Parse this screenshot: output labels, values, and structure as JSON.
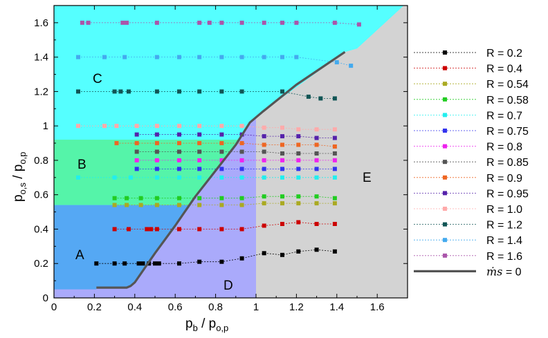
{
  "chart_data": {
    "type": "scatter",
    "xlabel": "p_b / p_o,p",
    "xlabel_main": "p",
    "xlabel_sub": "b",
    "xlabel_mid": " / p",
    "xlabel_sub2": "o,p",
    "ylabel": "p_o,s / p_o,p",
    "ylabel_main": "p",
    "ylabel_sub": "o,s",
    "ylabel_mid": " / p",
    "ylabel_sub2": "o,p",
    "xlim": [
      0,
      1.75
    ],
    "ylim": [
      0,
      1.7
    ],
    "xticks": [
      "0",
      "0.2",
      "0.4",
      "0.6",
      "0.8",
      "1",
      "1.2",
      "1.4",
      "1.6"
    ],
    "yticks": [
      "0",
      "0.2",
      "0.4",
      "0.6",
      "0.8",
      "1",
      "1.2",
      "1.4",
      "1.6"
    ],
    "legend_position": "right",
    "region_labels": [
      "A",
      "B",
      "C",
      "D",
      "E"
    ],
    "region_colors": {
      "A": "#55a8f4",
      "B": "#55f4a9",
      "C": "#55ffff",
      "D": "#aaaafb",
      "E": "#d3d3d3"
    },
    "mass_flow_line": {
      "label_symbol": "ṁs",
      "label_value": " = 0",
      "color": "#555555",
      "x": [
        0.21,
        0.36,
        0.38,
        0.4,
        0.5,
        0.6,
        0.7,
        0.8,
        0.9,
        0.97,
        1.03,
        1.2,
        1.44
      ],
      "y": [
        0.06,
        0.06,
        0.07,
        0.09,
        0.26,
        0.42,
        0.59,
        0.74,
        0.89,
        1.02,
        1.08,
        1.24,
        1.43
      ]
    },
    "series": [
      {
        "name": "R = 0.2",
        "color": "#000000",
        "x": [
          0.21,
          0.3,
          0.35,
          0.42,
          0.44,
          0.47,
          0.5,
          0.52,
          0.62,
          0.72,
          0.83,
          0.93,
          1.04,
          1.13,
          1.21,
          1.3,
          1.39
        ],
        "y": [
          0.2,
          0.2,
          0.2,
          0.2,
          0.2,
          0.2,
          0.2,
          0.2,
          0.2,
          0.21,
          0.21,
          0.23,
          0.26,
          0.25,
          0.27,
          0.28,
          0.27
        ]
      },
      {
        "name": "R = 0.4",
        "color": "#cc0000",
        "x": [
          0.3,
          0.37,
          0.46,
          0.48,
          0.51,
          0.62,
          0.72,
          0.83,
          0.93,
          1.04,
          1.13,
          1.21,
          1.3,
          1.39
        ],
        "y": [
          0.4,
          0.4,
          0.4,
          0.4,
          0.4,
          0.4,
          0.4,
          0.4,
          0.4,
          0.42,
          0.43,
          0.44,
          0.43,
          0.43
        ]
      },
      {
        "name": "R = 0.54",
        "color": "#aaaa22",
        "x": [
          0.3,
          0.36,
          0.43,
          0.51,
          0.62,
          0.72,
          0.83,
          0.93,
          1.04,
          1.13,
          1.21,
          1.3,
          1.39
        ],
        "y": [
          0.54,
          0.54,
          0.54,
          0.54,
          0.54,
          0.54,
          0.54,
          0.54,
          0.55,
          0.55,
          0.55,
          0.55,
          0.55
        ]
      },
      {
        "name": "R = 0.58",
        "color": "#22cc22",
        "x": [
          0.3,
          0.36,
          0.43,
          0.51,
          0.62,
          0.72,
          0.83,
          0.93,
          1.04,
          1.13,
          1.21,
          1.3,
          1.39
        ],
        "y": [
          0.58,
          0.58,
          0.58,
          0.58,
          0.58,
          0.58,
          0.58,
          0.58,
          0.59,
          0.59,
          0.59,
          0.59,
          0.58
        ]
      },
      {
        "name": "R = 0.7",
        "color": "#22eeee",
        "x": [
          0.12,
          0.3,
          0.38,
          0.51,
          0.62,
          0.72,
          0.83,
          0.93,
          1.04,
          1.13,
          1.21,
          1.3,
          1.39
        ],
        "y": [
          0.7,
          0.7,
          0.7,
          0.7,
          0.7,
          0.7,
          0.7,
          0.7,
          0.7,
          0.7,
          0.7,
          0.7,
          0.7
        ]
      },
      {
        "name": "R = 0.75",
        "color": "#3333ee",
        "x": [
          0.41,
          0.51,
          0.62,
          0.72,
          0.83,
          0.93,
          1.04,
          1.13,
          1.21,
          1.3,
          1.39
        ],
        "y": [
          0.75,
          0.75,
          0.75,
          0.75,
          0.75,
          0.75,
          0.75,
          0.75,
          0.75,
          0.75,
          0.75
        ]
      },
      {
        "name": "R = 0.8",
        "color": "#ee22ee",
        "x": [
          0.41,
          0.51,
          0.62,
          0.72,
          0.83,
          0.93,
          1.04,
          1.13,
          1.21,
          1.3,
          1.39
        ],
        "y": [
          0.8,
          0.8,
          0.8,
          0.8,
          0.8,
          0.8,
          0.8,
          0.8,
          0.8,
          0.8,
          0.8
        ]
      },
      {
        "name": "R = 0.85",
        "color": "#555555",
        "x": [
          0.41,
          0.51,
          0.62,
          0.72,
          0.83,
          0.93,
          1.04,
          1.13,
          1.21,
          1.3,
          1.39
        ],
        "y": [
          0.85,
          0.85,
          0.85,
          0.85,
          0.85,
          0.85,
          0.85,
          0.84,
          0.84,
          0.84,
          0.84
        ]
      },
      {
        "name": "R = 0.9",
        "color": "#ee6622",
        "x": [
          0.31,
          0.41,
          0.51,
          0.62,
          0.72,
          0.83,
          0.93,
          1.04,
          1.13,
          1.21,
          1.3,
          1.39
        ],
        "y": [
          0.9,
          0.9,
          0.9,
          0.9,
          0.9,
          0.9,
          0.9,
          0.89,
          0.89,
          0.89,
          0.89,
          0.88
        ]
      },
      {
        "name": "R = 0.95",
        "color": "#5522aa",
        "x": [
          0.41,
          0.51,
          0.62,
          0.72,
          0.83,
          0.93,
          1.04,
          1.13,
          1.21,
          1.3,
          1.39
        ],
        "y": [
          0.95,
          0.95,
          0.95,
          0.95,
          0.95,
          0.95,
          0.94,
          0.94,
          0.94,
          0.93,
          0.93
        ]
      },
      {
        "name": "R = 1.0",
        "color": "#ffaaaa",
        "x": [
          0.12,
          0.25,
          0.31,
          0.41,
          0.51,
          0.62,
          0.72,
          0.83,
          0.93,
          1.04,
          1.13,
          1.21,
          1.3,
          1.39
        ],
        "y": [
          1.0,
          1.0,
          1.0,
          1.0,
          1.0,
          1.0,
          1.0,
          1.0,
          1.0,
          0.99,
          0.99,
          0.98,
          0.98,
          0.98
        ]
      },
      {
        "name": "R = 1.2",
        "color": "#115555",
        "x": [
          0.12,
          0.3,
          0.33,
          0.37,
          0.51,
          0.62,
          0.72,
          0.83,
          0.93,
          1.13,
          1.26,
          1.32,
          1.39
        ],
        "y": [
          1.2,
          1.2,
          1.2,
          1.2,
          1.2,
          1.2,
          1.2,
          1.2,
          1.2,
          1.2,
          1.17,
          1.16,
          1.16
        ]
      },
      {
        "name": "R = 1.4",
        "color": "#44aaee",
        "x": [
          0.12,
          0.25,
          0.35,
          0.51,
          0.62,
          0.72,
          0.83,
          0.93,
          1.04,
          1.13,
          1.2,
          1.4,
          1.47
        ],
        "y": [
          1.4,
          1.4,
          1.4,
          1.4,
          1.4,
          1.4,
          1.4,
          1.4,
          1.4,
          1.4,
          1.4,
          1.37,
          1.35
        ]
      },
      {
        "name": "R = 1.6",
        "color": "#aa55aa",
        "x": [
          0.14,
          0.17,
          0.34,
          0.36,
          0.51,
          0.72,
          0.77,
          0.83,
          0.93,
          1.04,
          1.13,
          1.2,
          1.39,
          1.51
        ],
        "y": [
          1.6,
          1.6,
          1.6,
          1.6,
          1.6,
          1.6,
          1.6,
          1.6,
          1.6,
          1.6,
          1.6,
          1.6,
          1.6,
          1.59
        ]
      }
    ]
  }
}
